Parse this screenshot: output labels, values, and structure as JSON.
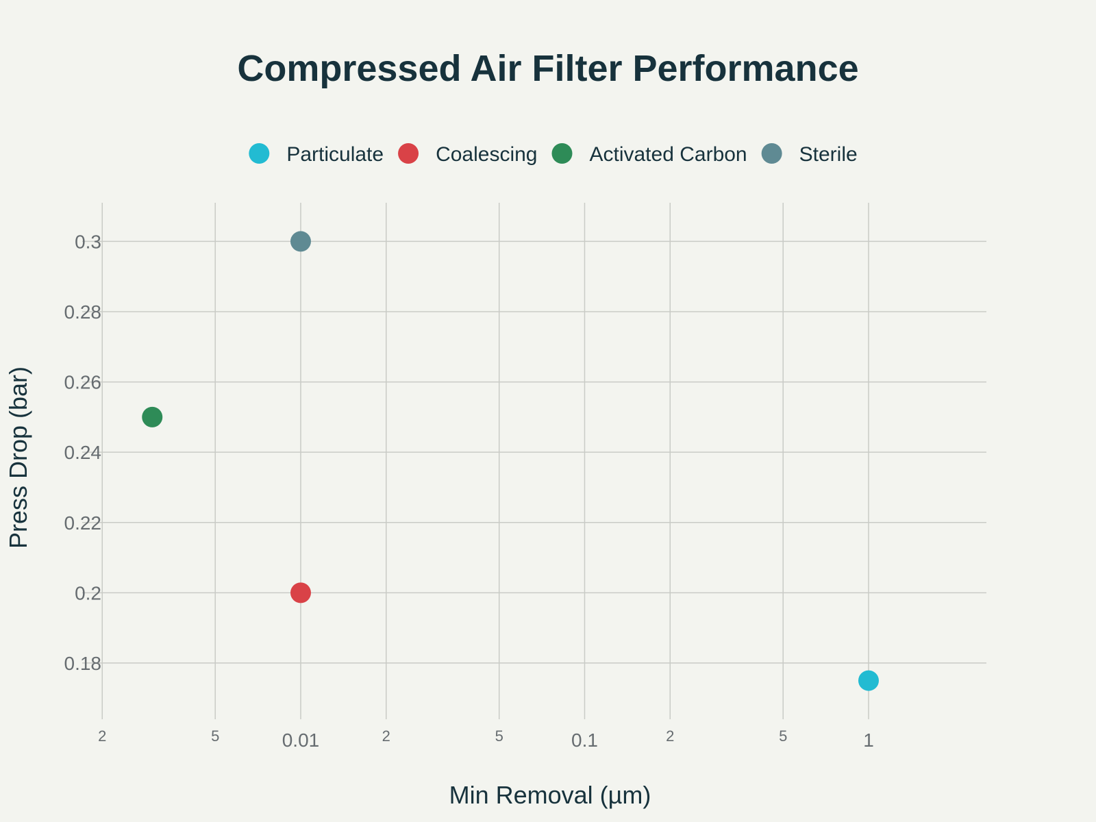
{
  "chart_data": {
    "type": "scatter",
    "title": "Compressed Air Filter Performance",
    "xlabel": "Min Removal (µm)",
    "ylabel": "Press Drop (bar)",
    "x_scale": "log",
    "xlim": [
      0.0017,
      2.6
    ],
    "ylim": [
      0.164,
      0.311
    ],
    "grid": true,
    "legend_position": "top",
    "x_ticks": [
      {
        "value": 0.002,
        "label": "2",
        "major": false
      },
      {
        "value": 0.005,
        "label": "5",
        "major": false
      },
      {
        "value": 0.01,
        "label": "0.01",
        "major": true
      },
      {
        "value": 0.02,
        "label": "2",
        "major": false
      },
      {
        "value": 0.05,
        "label": "5",
        "major": false
      },
      {
        "value": 0.1,
        "label": "0.1",
        "major": true
      },
      {
        "value": 0.2,
        "label": "2",
        "major": false
      },
      {
        "value": 0.5,
        "label": "5",
        "major": false
      },
      {
        "value": 1,
        "label": "1",
        "major": true
      }
    ],
    "y_ticks": [
      {
        "value": 0.18,
        "label": "0.18"
      },
      {
        "value": 0.2,
        "label": "0.2"
      },
      {
        "value": 0.22,
        "label": "0.22"
      },
      {
        "value": 0.24,
        "label": "0.24"
      },
      {
        "value": 0.26,
        "label": "0.26"
      },
      {
        "value": 0.28,
        "label": "0.28"
      },
      {
        "value": 0.3,
        "label": "0.3"
      }
    ],
    "series": [
      {
        "name": "Particulate",
        "color": "#22bbd2",
        "x": [
          1
        ],
        "y": [
          0.175
        ]
      },
      {
        "name": "Coalescing",
        "color": "#d94247",
        "x": [
          0.01
        ],
        "y": [
          0.2
        ]
      },
      {
        "name": "Activated Carbon",
        "color": "#2e8b57",
        "x": [
          0.003
        ],
        "y": [
          0.25
        ]
      },
      {
        "name": "Sterile",
        "color": "#5f8a93",
        "x": [
          0.01
        ],
        "y": [
          0.3
        ]
      }
    ]
  }
}
